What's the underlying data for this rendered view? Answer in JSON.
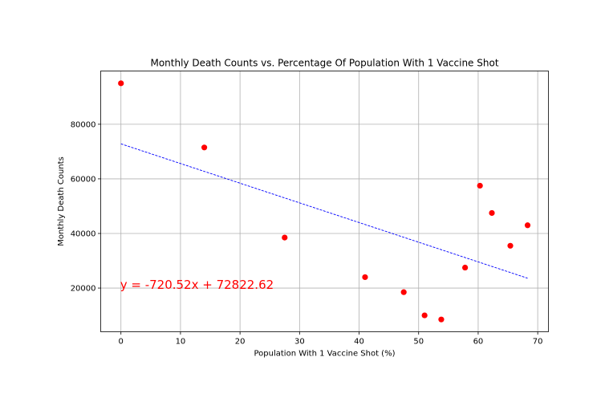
{
  "chart_data": {
    "type": "scatter",
    "title": "Monthly Death Counts vs. Percentage Of Population With 1 Vaccine Shot",
    "xlabel": "Population With 1 Vaccine Shot (%)",
    "ylabel": "Monthly Death Counts",
    "xlim": [
      -3.4,
      71.8
    ],
    "ylim": [
      4000,
      99500
    ],
    "xticks": [
      0,
      10,
      20,
      30,
      40,
      50,
      60,
      70
    ],
    "yticks": [
      20000,
      40000,
      60000,
      80000
    ],
    "xtick_labels": [
      "0",
      "10",
      "20",
      "30",
      "40",
      "50",
      "60",
      "70"
    ],
    "ytick_labels": [
      "20000",
      "40000",
      "60000",
      "80000"
    ],
    "grid": true,
    "points": {
      "color": "#ff0000",
      "x": [
        0,
        14,
        27.5,
        41,
        47.5,
        51,
        53.8,
        57.8,
        60.3,
        62.3,
        65.4,
        68.3
      ],
      "y": [
        95000,
        71500,
        38500,
        24000,
        18500,
        10000,
        8500,
        27500,
        57500,
        47500,
        35500,
        43000
      ]
    },
    "regression": {
      "slope": -720.52,
      "intercept": 72822.62,
      "x_range": [
        0,
        68.3
      ],
      "color": "#0000ff",
      "style": "dashed"
    },
    "annotation": {
      "text": "y = -720.52x + 72822.62",
      "x": 0,
      "y": 20000,
      "color": "#ff0000"
    }
  }
}
